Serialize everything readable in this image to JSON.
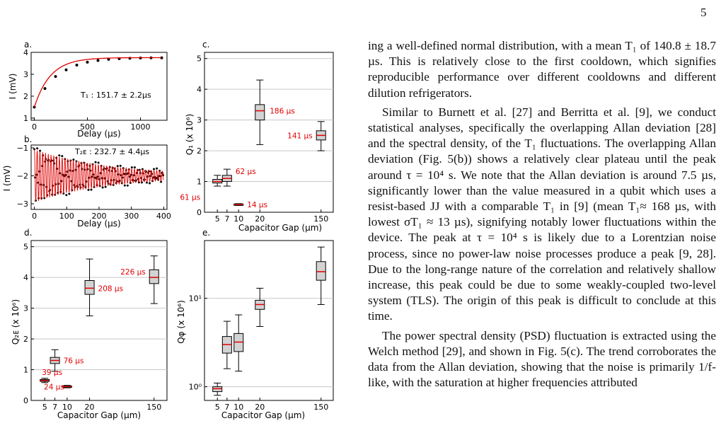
{
  "page_number": "5",
  "figure": {
    "panels": [
      {
        "label": "a.",
        "xlabel": "Delay (μs)",
        "ylabel": "I (mV)",
        "x_ticks": [
          "0",
          "500",
          "1000"
        ],
        "y_ticks": [
          "1",
          "2",
          "3",
          "4"
        ],
        "annotation": "T₁ : 151.7 ± 2.2μs"
      },
      {
        "label": "b.",
        "xlabel": "Delay (μs)",
        "ylabel": "I (mV)",
        "x_ticks": [
          "0",
          "100",
          "200",
          "300",
          "400"
        ],
        "y_ticks": [
          "−1",
          "−2",
          "−3"
        ],
        "annotation": "T₂ᴇ : 232.7 ± 4.4μs"
      },
      {
        "label": "c.",
        "xlabel": "Capacitor Gap (μm)",
        "ylabel": "Q₁ (x 10⁶)",
        "x_ticks": [
          "5",
          "7",
          "10",
          "20",
          "150"
        ],
        "y_ticks": [
          "0",
          "1",
          "2",
          "3",
          "4",
          "5"
        ],
        "box_labels": [
          "61 μs",
          "62 μs",
          "14 μs",
          "186 μs",
          "141 μs"
        ]
      },
      {
        "label": "d.",
        "xlabel": "Capacitor Gap (μm)",
        "ylabel": "Q₂ᴇ (x 10⁶)",
        "x_ticks": [
          "5",
          "7",
          "10",
          "20",
          "150"
        ],
        "y_ticks": [
          "0",
          "1",
          "2",
          "3",
          "4",
          "5"
        ],
        "box_labels": [
          "39 μs",
          "76 μs",
          "24 μs",
          "208 μs",
          "226 μs"
        ]
      },
      {
        "label": "e.",
        "xlabel": "Capacitor Gap (μm)",
        "ylabel": "Qφ (x 10⁶)",
        "x_ticks": [
          "5",
          "7",
          "10",
          "20",
          "150"
        ],
        "y_ticks": [
          "10⁰",
          "10¹"
        ]
      }
    ]
  },
  "chart_data": [
    {
      "type": "scatter",
      "panel": "a",
      "x": [
        0,
        100,
        200,
        300,
        400,
        500,
        600,
        700,
        800,
        900,
        1000,
        1100,
        1200
      ],
      "y": [
        1.5,
        2.35,
        2.9,
        3.2,
        3.42,
        3.55,
        3.63,
        3.68,
        3.71,
        3.73,
        3.74,
        3.75,
        3.75
      ],
      "fit": "exponential",
      "xlim": [
        -30,
        1250
      ],
      "ylim": [
        0.9,
        4.0
      ]
    },
    {
      "type": "scatter",
      "panel": "b",
      "envelope_decay_us": 232.7,
      "xlim": [
        -10,
        410
      ],
      "ylim": [
        -3.2,
        -0.9
      ]
    },
    {
      "type": "box",
      "panel": "c",
      "categories": [
        "5",
        "7",
        "10",
        "20",
        "150"
      ],
      "median": [
        1.0,
        1.1,
        0.25,
        3.3,
        2.5
      ],
      "q1": [
        0.95,
        1.0,
        0.23,
        3.0,
        2.35
      ],
      "q3": [
        1.07,
        1.2,
        0.27,
        3.5,
        2.65
      ],
      "whisker_low": [
        0.85,
        0.85,
        0.22,
        2.2,
        2.0
      ],
      "whisker_high": [
        1.2,
        1.4,
        0.28,
        4.3,
        2.95
      ],
      "ylim": [
        0,
        5.2
      ]
    },
    {
      "type": "box",
      "panel": "d",
      "categories": [
        "5",
        "7",
        "10",
        "20",
        "150"
      ],
      "median": [
        0.65,
        1.3,
        0.45,
        3.65,
        4.0
      ],
      "q1": [
        0.62,
        1.2,
        0.43,
        3.45,
        3.8
      ],
      "q3": [
        0.68,
        1.4,
        0.47,
        3.9,
        4.25
      ],
      "whisker_low": [
        0.58,
        0.95,
        0.41,
        2.75,
        3.15
      ],
      "whisker_high": [
        0.72,
        1.65,
        0.49,
        4.6,
        4.7
      ],
      "ylim": [
        0,
        5.2
      ]
    },
    {
      "type": "box",
      "panel": "e",
      "scale": "log",
      "categories": [
        "5",
        "7",
        "10",
        "20",
        "150"
      ],
      "median": [
        0.95,
        3.0,
        3.2,
        8.5,
        20
      ],
      "q1": [
        0.88,
        2.4,
        2.5,
        7.5,
        16
      ],
      "q3": [
        1.0,
        3.7,
        4.0,
        9.5,
        26
      ],
      "whisker_low": [
        0.8,
        1.6,
        1.5,
        4.8,
        8.5
      ],
      "whisker_high": [
        1.1,
        5.5,
        6.5,
        13,
        38
      ],
      "ylim": [
        0.7,
        45
      ]
    }
  ],
  "text": {
    "p1": "ing a well-defined normal distribution, with a mean T₁ of 140.8 ± 18.7 µs. This is relatively close to the first cooldown, which signifies reproducible performance over different cooldowns and different dilution refrigerators.",
    "p2": "Similar to Burnett et al. [27] and Berritta et al. [9], we conduct statistical analyses, specifically the overlapping Allan deviation [28] and the spectral density, of the T₁ fluctuations. The overlapping Allan deviation (Fig. 5(b)) shows a relatively clear plateau until the peak around τ = 10⁴ s. We note that the Allan deviation is around 7.5 µs, significantly lower than the value measured in a qubit which uses a resist-based JJ with a comparable T₁ in [9] (mean T₁≈ 168 µs, with lowest σT₁ ≈ 13 µs), signifying notably lower fluctuations within the device. The peak at τ = 10⁴ s is likely due to a Lorentzian noise process, since no power-law noise processes produce a peak [9, 28]. Due to the long-range nature of the correlation and relatively shallow increase, this peak could be due to some weakly-coupled two-level system (TLS). The origin of this peak is difficult to conclude at this time.",
    "p3": "The power spectral density (PSD) fluctuation is extracted using the Welch method [29], and shown in Fig. 5(c). The trend corroborates the data from the Allan deviation, showing that the noise is primarily 1/f-like, with the saturation at higher frequencies attributed"
  }
}
